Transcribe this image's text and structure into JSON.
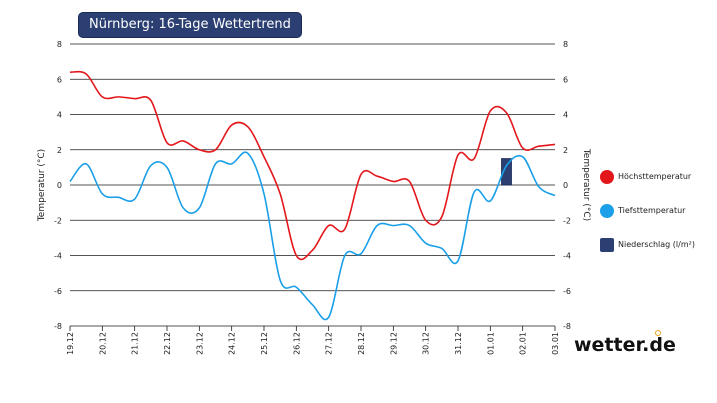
{
  "header": {
    "title": "Nürnberg: 16-Tage Wettertrend"
  },
  "brand": {
    "name": "wetter.de"
  },
  "colors": {
    "max": "#e3171b",
    "min": "#1a9fe8",
    "precip": "#2b3f72"
  },
  "chart_data": {
    "type": "line",
    "title": "Nürnberg: 16-Tage Wettertrend",
    "ylabel": "Temperatur (°C)",
    "ylim": [
      -8,
      8
    ],
    "yticks": [
      8,
      6,
      4,
      2,
      0,
      -2,
      -4,
      -6,
      -8
    ],
    "categories": [
      "19.12",
      "20.12",
      "21.12",
      "22.12",
      "23.12",
      "24.12",
      "25.12",
      "26.12",
      "27.12",
      "28.12",
      "29.12",
      "30.12",
      "31.12",
      "01.01",
      "02.01",
      "03.01"
    ],
    "legend": [
      {
        "name": "Höchsttemperatur",
        "icon": "circle",
        "color": "#e3171b"
      },
      {
        "name": "Tiefsttemperatur",
        "icon": "circle",
        "color": "#1a9fe8"
      },
      {
        "name": "Niederschlag (l/m²)",
        "icon": "square",
        "color": "#2b3f72"
      }
    ],
    "series": [
      {
        "name": "Höchsttemperatur",
        "color": "#e3171b",
        "x": [
          0,
          0.5,
          1,
          1.5,
          2,
          2.5,
          3,
          3.5,
          4,
          4.5,
          5,
          5.5,
          6,
          6.5,
          7,
          7.5,
          8,
          8.5,
          9,
          9.5,
          10,
          10.5,
          11,
          11.5,
          12,
          12.5,
          13,
          13.5,
          14,
          14.5,
          15
        ],
        "values": [
          6.4,
          6.3,
          5.0,
          5.0,
          4.9,
          4.8,
          2.4,
          2.5,
          2.0,
          2.0,
          3.4,
          3.3,
          1.6,
          -0.5,
          -4.0,
          -3.7,
          -2.3,
          -2.5,
          0.6,
          0.5,
          0.2,
          0.2,
          -2.0,
          -1.8,
          1.7,
          1.5,
          4.2,
          4.1,
          2.1,
          2.2,
          2.3
        ]
      },
      {
        "name": "Tiefsttemperatur",
        "color": "#1a9fe8",
        "x": [
          0,
          0.5,
          1,
          1.5,
          2,
          2.5,
          3,
          3.5,
          4,
          4.5,
          5,
          5.5,
          6,
          6.5,
          7,
          7.5,
          8,
          8.5,
          9,
          9.5,
          10,
          10.5,
          11,
          11.5,
          12,
          12.5,
          13,
          13.5,
          14,
          14.5,
          15
        ],
        "values": [
          0.2,
          1.2,
          -0.5,
          -0.7,
          -0.8,
          1.1,
          1.0,
          -1.3,
          -1.3,
          1.2,
          1.2,
          1.8,
          -0.5,
          -5.4,
          -5.8,
          -6.8,
          -7.5,
          -4.0,
          -3.9,
          -2.3,
          -2.3,
          -2.3,
          -3.3,
          -3.6,
          -4.3,
          -0.4,
          -0.9,
          1.1,
          1.6,
          -0.1,
          -0.6
        ]
      }
    ],
    "precipitation": {
      "name": "Niederschlag (l/m²)",
      "x": 13.5,
      "value": 1.5,
      "color": "#2b3f72"
    }
  }
}
